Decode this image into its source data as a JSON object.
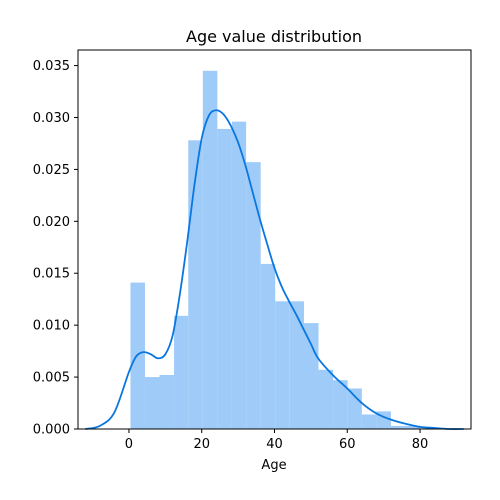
{
  "chart_data": {
    "type": "bar",
    "title": "Age value distribution",
    "xlabel": "Age",
    "ylabel": "",
    "xlim": [
      -14,
      94
    ],
    "ylim": [
      0,
      0.0365
    ],
    "x_ticks": [
      0,
      20,
      40,
      60,
      80
    ],
    "y_ticks": [
      0.0,
      0.005,
      0.01,
      0.015,
      0.02,
      0.025,
      0.03,
      0.035
    ],
    "y_tick_labels": [
      "0.000",
      "0.005",
      "0.010",
      "0.015",
      "0.020",
      "0.025",
      "0.030",
      "0.035"
    ],
    "grid": false,
    "histogram": {
      "bin_edges": [
        0.42,
        4.4,
        8.4,
        12.4,
        16.3,
        20.3,
        24.3,
        28.3,
        32.2,
        36.2,
        40.2,
        44.2,
        48.1,
        52.1,
        56.1,
        60.1,
        64.0,
        68.0,
        72.0,
        76.0,
        80.0
      ],
      "density": [
        0.0141,
        0.005,
        0.0052,
        0.0109,
        0.0278,
        0.0345,
        0.0289,
        0.0296,
        0.0257,
        0.0159,
        0.0123,
        0.0123,
        0.0102,
        0.0057,
        0.0047,
        0.0039,
        0.0014,
        0.0017,
        0.0003,
        0.0003
      ],
      "color": "#9fcbf8"
    },
    "kde": {
      "x": [
        -12,
        -8,
        -4,
        0,
        2,
        4,
        6,
        8,
        10,
        12,
        14,
        16,
        18,
        20,
        22,
        24,
        26,
        28,
        30,
        32,
        34,
        36,
        38,
        40,
        42,
        44,
        46,
        48,
        50,
        52,
        56,
        60,
        64,
        68,
        72,
        76,
        80,
        84,
        88,
        92
      ],
      "y": [
        0.0,
        0.0003,
        0.0016,
        0.0055,
        0.007,
        0.0074,
        0.0072,
        0.0068,
        0.0072,
        0.009,
        0.013,
        0.018,
        0.0235,
        0.028,
        0.0302,
        0.0307,
        0.0303,
        0.0292,
        0.0276,
        0.0254,
        0.0228,
        0.0202,
        0.0178,
        0.0155,
        0.0137,
        0.0123,
        0.011,
        0.0096,
        0.0082,
        0.0068,
        0.0052,
        0.0039,
        0.0025,
        0.0015,
        0.0009,
        0.0005,
        0.0002,
        0.0001,
        0.0,
        0.0
      ],
      "color": "#0a77e0"
    }
  }
}
